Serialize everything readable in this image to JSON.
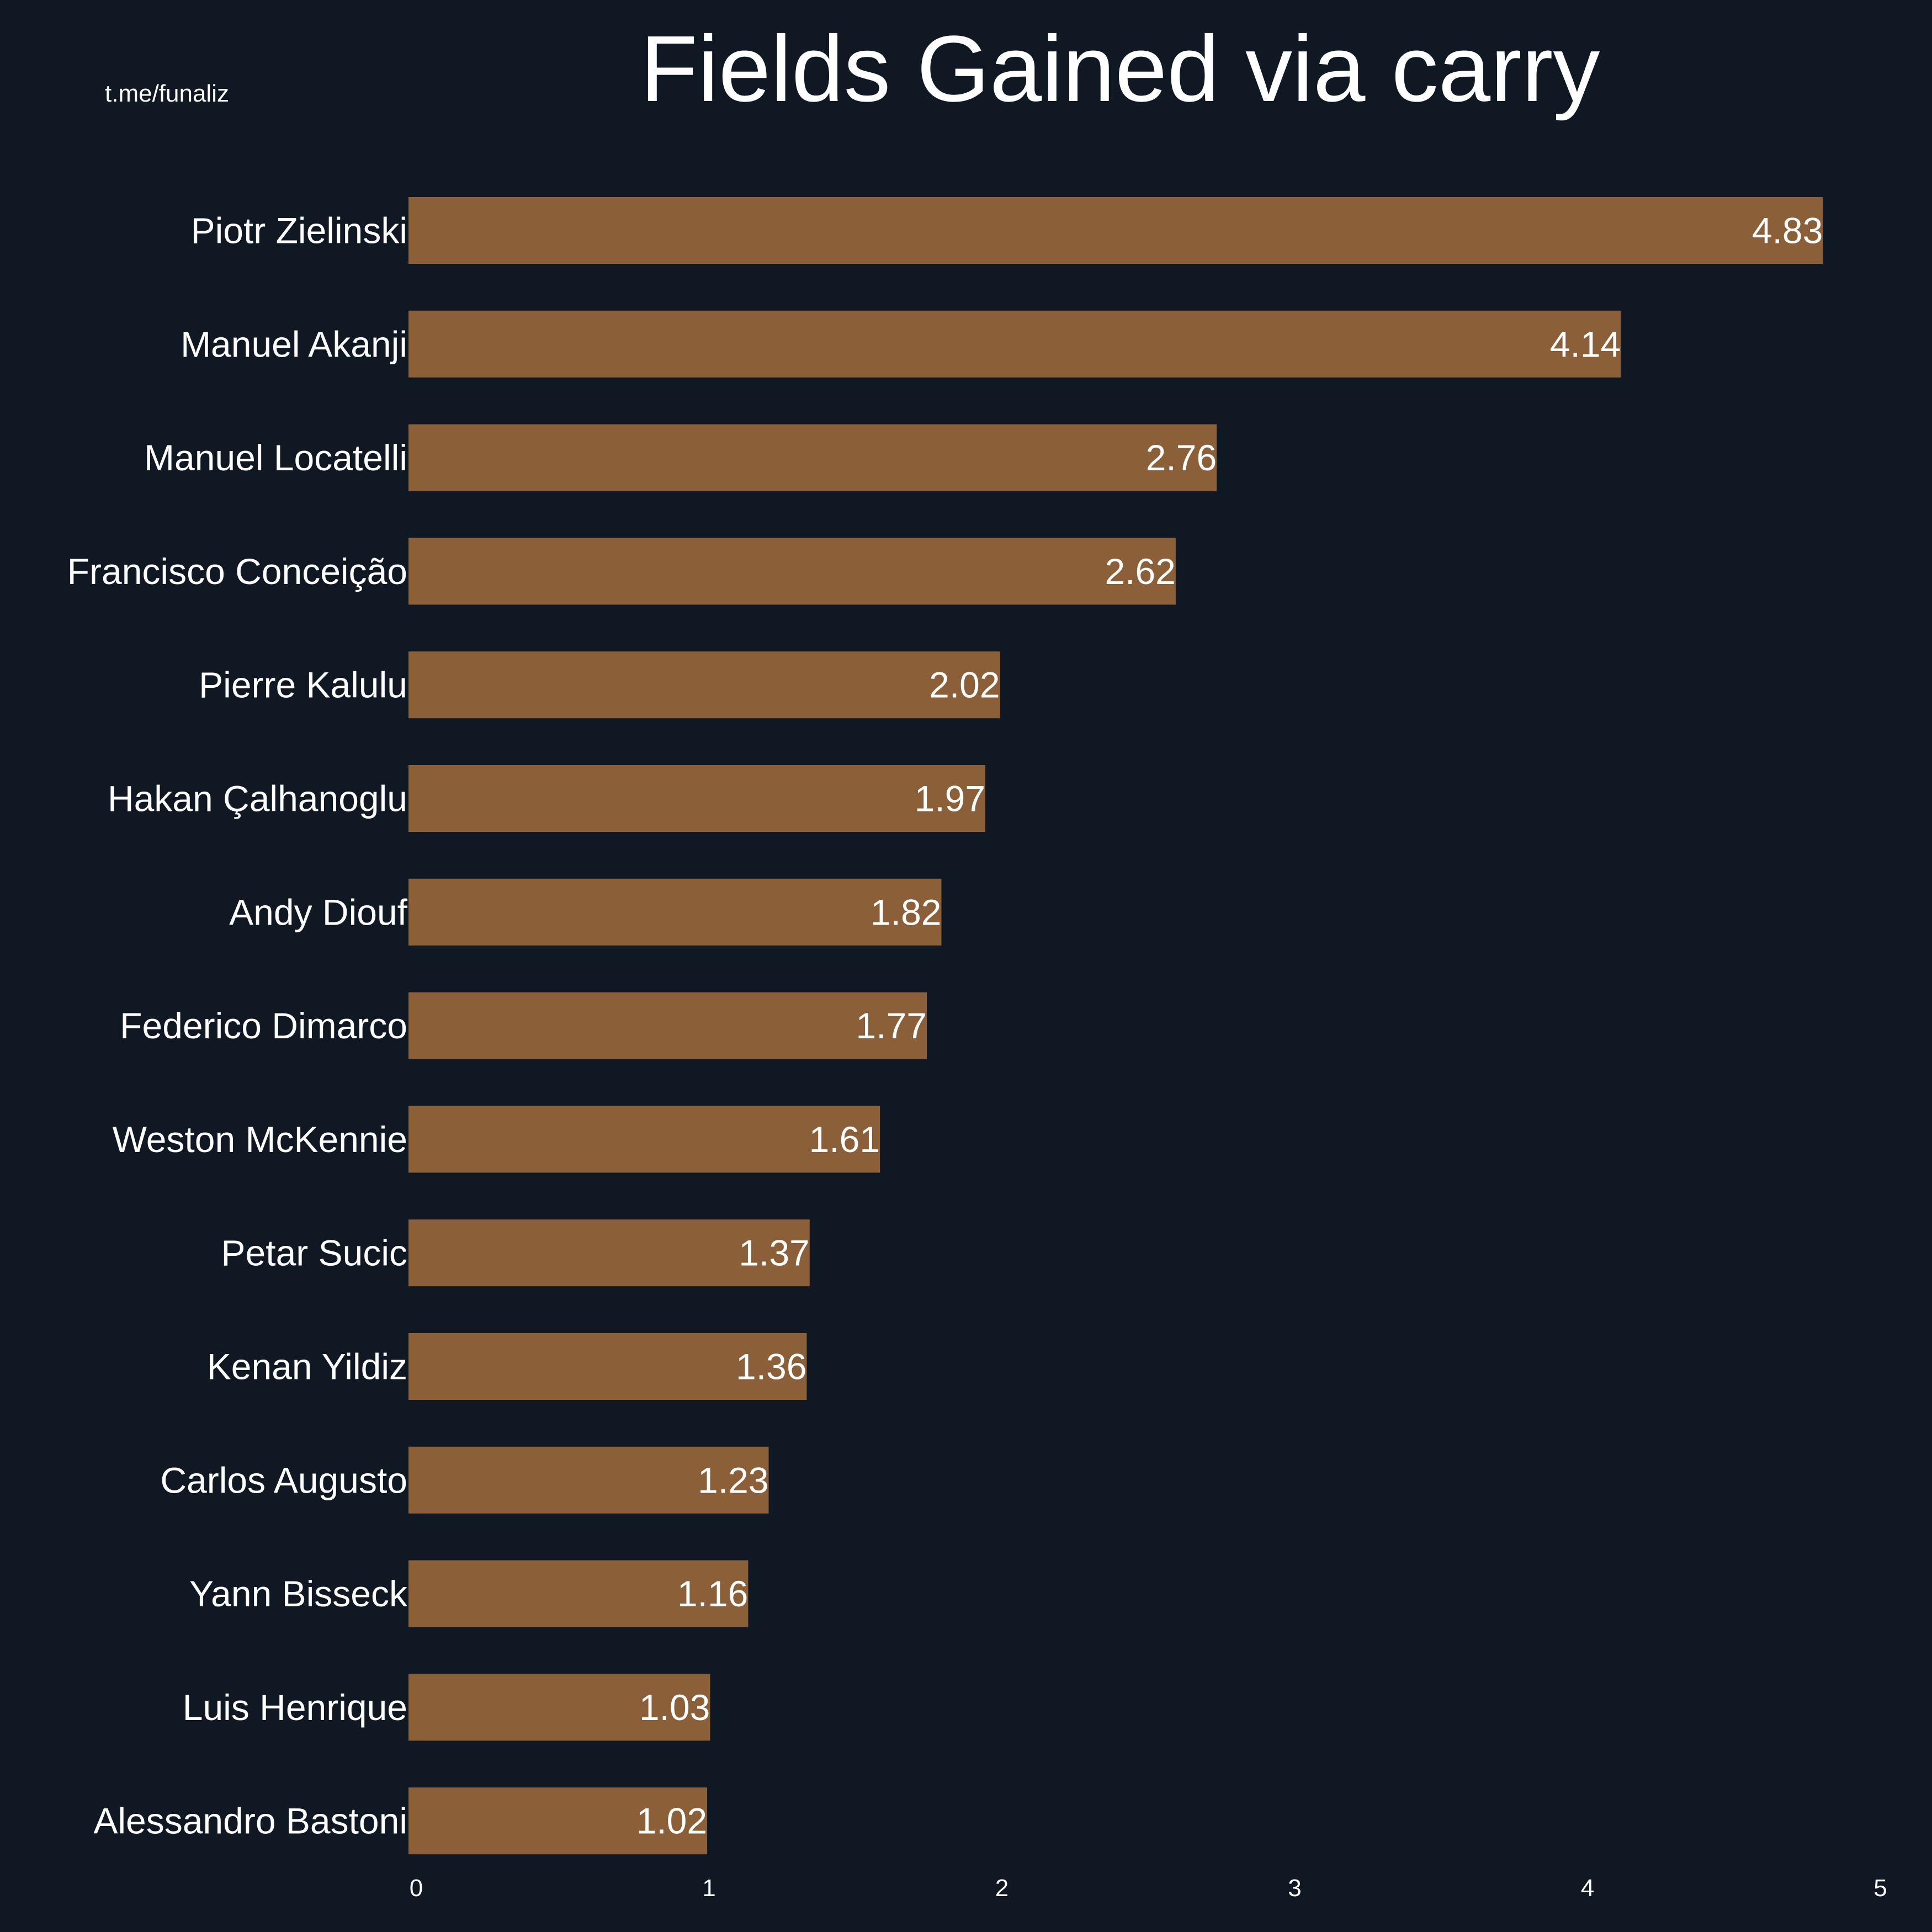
{
  "watermark": "t.me/funaliz",
  "colors": {
    "background": "#0f1823",
    "bar": "#8b5f38",
    "text": "#ffffff"
  },
  "chart_data": {
    "type": "bar",
    "orientation": "horizontal",
    "title": "Fields Gained via carry",
    "xlabel": "",
    "ylabel": "",
    "xlim": [
      0,
      5
    ],
    "xticks": [
      0,
      1,
      2,
      3,
      4,
      5
    ],
    "grid": false,
    "categories": [
      "Piotr Zielinski",
      "Manuel Akanji",
      "Manuel Locatelli",
      "Francisco Conceição",
      "Pierre Kalulu",
      "Hakan Çalhanoglu",
      "Andy Diouf",
      "Federico Dimarco",
      "Weston McKennie",
      "Petar Sucic",
      "Kenan Yildiz",
      "Carlos Augusto",
      "Yann Bisseck",
      "Luis Henrique",
      "Alessandro Bastoni"
    ],
    "values": [
      4.83,
      4.14,
      2.76,
      2.62,
      2.02,
      1.97,
      1.82,
      1.77,
      1.61,
      1.37,
      1.36,
      1.23,
      1.16,
      1.03,
      1.02
    ],
    "data_labels": [
      "4.83",
      "4.14",
      "2.76",
      "2.62",
      "2.02",
      "1.97",
      "1.82",
      "1.77",
      "1.61",
      "1.37",
      "1.36",
      "1.23",
      "1.16",
      "1.03",
      "1.02"
    ]
  }
}
